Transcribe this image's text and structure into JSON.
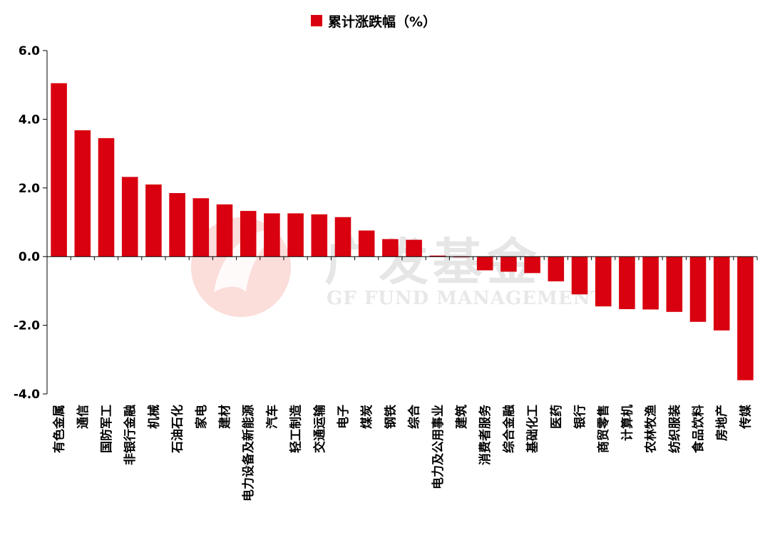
{
  "colors": {
    "bar": "#d9000f",
    "axis": "#000000",
    "watermark_logo": "#f7c9c4",
    "watermark_text": "#e4e4e4"
  },
  "watermark": {
    "logo_text": "广发基金",
    "sub_text": "GF FUND MANAGEMENT"
  },
  "chart_data": {
    "type": "bar",
    "title": "",
    "xlabel": "",
    "ylabel": "",
    "legend": {
      "entries": [
        "累计涨跌幅（%）"
      ],
      "placement": "top-center"
    },
    "ylim": [
      -4.0,
      6.0
    ],
    "yticks": [
      "6.0",
      "4.0",
      "2.0",
      "0.0",
      "-2.0",
      "-4.0"
    ],
    "yticks_values": [
      6,
      4,
      2,
      0,
      -2,
      -4
    ],
    "grid": false,
    "categories": [
      "有色金属",
      "通信",
      "国防军工",
      "非银行金融",
      "机械",
      "石油石化",
      "家电",
      "建材",
      "电力设备及新能源",
      "汽车",
      "轻工制造",
      "交通运输",
      "电子",
      "煤炭",
      "钢铁",
      "综合",
      "电力及公用事业",
      "建筑",
      "消费者服务",
      "综合金融",
      "基础化工",
      "医药",
      "银行",
      "商贸零售",
      "计算机",
      "农林牧渔",
      "纺织服装",
      "食品饮料",
      "房地产",
      "传媒"
    ],
    "series": [
      {
        "name": "累计涨跌幅（%）",
        "values": [
          5.05,
          3.68,
          3.45,
          2.32,
          2.1,
          1.85,
          1.7,
          1.52,
          1.33,
          1.26,
          1.26,
          1.23,
          1.15,
          0.76,
          0.51,
          0.49,
          0.03,
          -0.02,
          -0.4,
          -0.44,
          -0.48,
          -0.72,
          -1.1,
          -1.45,
          -1.53,
          -1.54,
          -1.61,
          -1.9,
          -2.15,
          -3.6
        ]
      }
    ]
  }
}
